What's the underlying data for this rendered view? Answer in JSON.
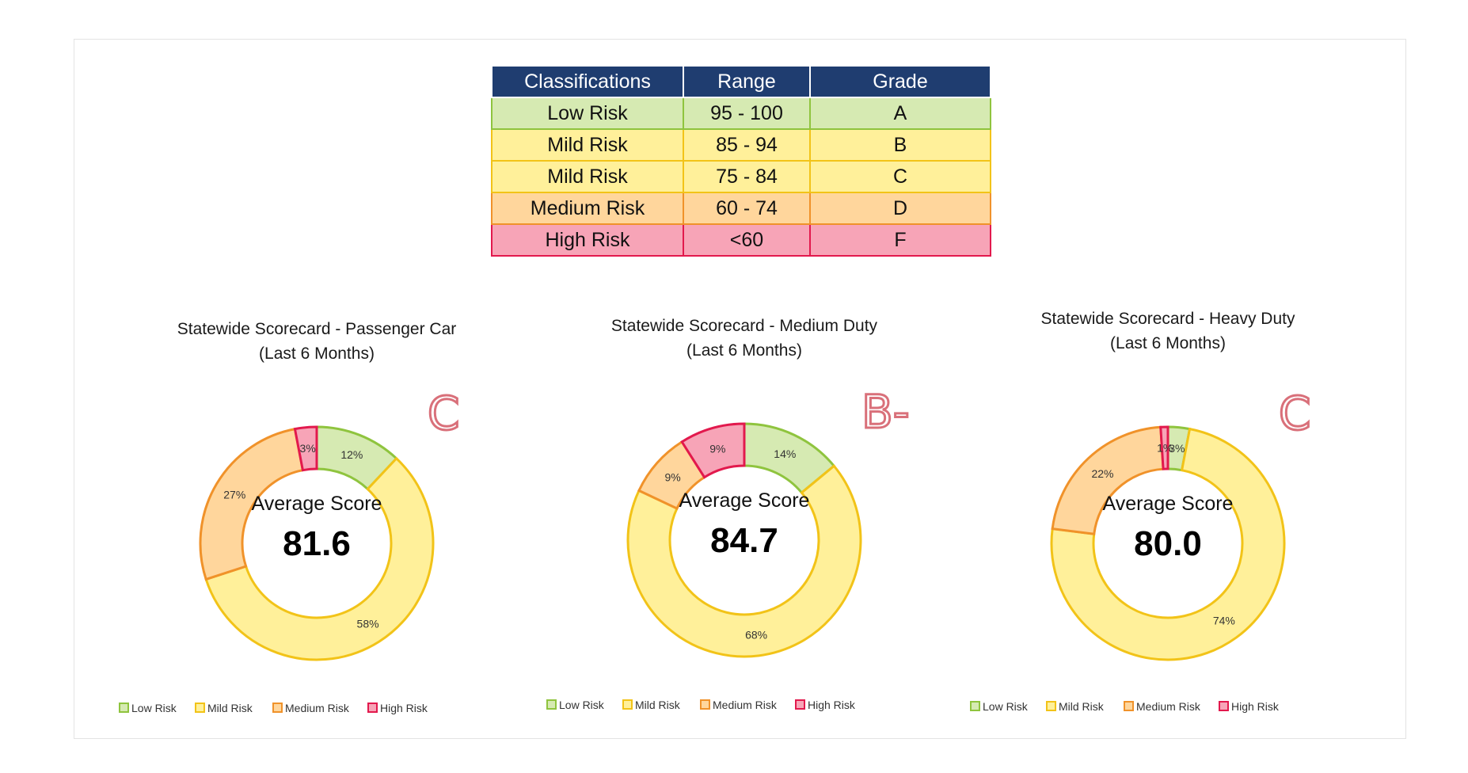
{
  "table": {
    "headers": [
      "Classifications",
      "Range",
      "Grade"
    ],
    "rows": [
      {
        "classification": "Low Risk",
        "range": "95 - 100",
        "grade": "A"
      },
      {
        "classification": "Mild Risk",
        "range": "85 - 94",
        "grade": "B"
      },
      {
        "classification": "Mild Risk",
        "range": "75 - 84",
        "grade": "C"
      },
      {
        "classification": "Medium Risk",
        "range": "60 - 74",
        "grade": "D"
      },
      {
        "classification": "High Risk",
        "range": "<60",
        "grade": "F"
      }
    ]
  },
  "colors": {
    "low_fill": "#d6eab2",
    "low_stroke": "#8fc43e",
    "mild_fill": "#fff09a",
    "mild_stroke": "#f2c318",
    "medium_fill": "#ffd69c",
    "medium_stroke": "#f0922a",
    "high_fill": "#f7a4b7",
    "high_stroke": "#e2194d",
    "header": "#1f3d70"
  },
  "chart_data": [
    {
      "type": "pie",
      "title": "Statewide Scorecard - Passenger Car",
      "subtitle": "(Last 6 Months)",
      "center_label": "Average Score",
      "center_value": "81.6",
      "grade_annotation": "C",
      "categories": [
        "Low Risk",
        "Mild Risk",
        "Medium Risk",
        "High Risk"
      ],
      "values": [
        12,
        58,
        27,
        3
      ],
      "data_labels": [
        "12%",
        "58%",
        "27%",
        "3%"
      ],
      "legend_position": "bottom"
    },
    {
      "type": "pie",
      "title": "Statewide Scorecard - Medium Duty",
      "subtitle": "(Last 6 Months)",
      "center_label": "Average Score",
      "center_value": "84.7",
      "grade_annotation": "B-",
      "categories": [
        "Low Risk",
        "Mild Risk",
        "Medium Risk",
        "High Risk"
      ],
      "values": [
        14,
        68,
        9,
        9
      ],
      "data_labels": [
        "14%",
        "68%",
        "9%",
        "9%"
      ],
      "legend_position": "bottom"
    },
    {
      "type": "pie",
      "title": "Statewide Scorecard - Heavy Duty",
      "subtitle": "(Last 6 Months)",
      "center_label": "Average Score",
      "center_value": "80.0",
      "grade_annotation": "C",
      "categories": [
        "Low Risk",
        "Mild Risk",
        "Medium Risk",
        "High Risk"
      ],
      "values": [
        3,
        74,
        22,
        1
      ],
      "data_labels": [
        "3%",
        "74%",
        "22%",
        "1%"
      ],
      "legend_position": "bottom"
    }
  ]
}
